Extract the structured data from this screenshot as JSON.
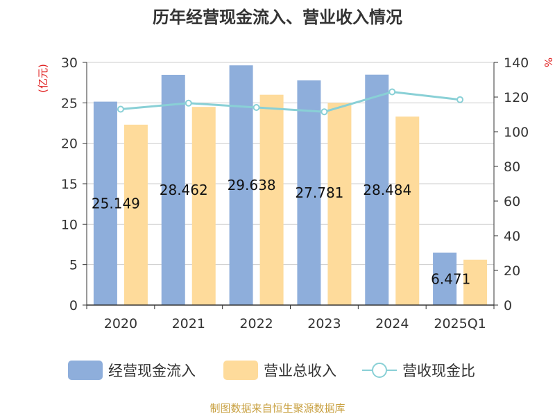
{
  "chart_data": {
    "type": "bar",
    "title": "历年经营现金流入、营业收入情况",
    "categories": [
      "2020",
      "2021",
      "2022",
      "2023",
      "2024",
      "2025Q1"
    ],
    "series": [
      {
        "name": "经营现金流入",
        "kind": "bar",
        "axis": "left",
        "color": "#8eaedb",
        "values": [
          25.149,
          28.462,
          29.638,
          27.781,
          28.484,
          6.471
        ],
        "labels": [
          "25.149",
          "28.462",
          "29.638",
          "27.781",
          "28.484",
          "6.471"
        ]
      },
      {
        "name": "营业总收入",
        "kind": "bar",
        "axis": "left",
        "color": "#fedb9b",
        "values": [
          22.3,
          24.5,
          26.0,
          25.0,
          23.3,
          5.6
        ]
      },
      {
        "name": "营收现金比",
        "kind": "line",
        "axis": "right",
        "color": "#89d0d6",
        "values": [
          113,
          116.5,
          114,
          111.5,
          123,
          118.5
        ]
      }
    ],
    "y_left": {
      "unit": "(亿元)",
      "min": 0,
      "max": 30,
      "ticks": [
        0,
        5,
        10,
        15,
        20,
        25,
        30
      ]
    },
    "y_right": {
      "unit": "%",
      "min": 0,
      "max": 140,
      "ticks": [
        0,
        20,
        40,
        60,
        80,
        100,
        120,
        140
      ]
    },
    "grid": true,
    "legend_position": "bottom",
    "source": "制图数据来自恒生聚源数据库"
  }
}
